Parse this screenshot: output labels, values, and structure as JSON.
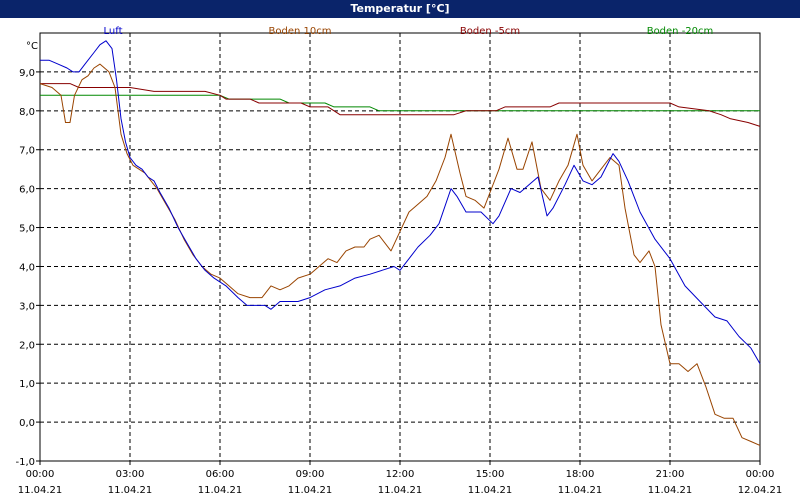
{
  "window": {
    "title": "Temperatur [°C]"
  },
  "chart_data": {
    "type": "line",
    "title": "Temperatur [°C]",
    "ylabel": "°C",
    "xlabel": "",
    "ylim": [
      -1.0,
      10.0
    ],
    "xlim": [
      0,
      24
    ],
    "grid": true,
    "legend_position": "top",
    "y_ticks": [
      -1.0,
      0.0,
      1.0,
      2.0,
      3.0,
      4.0,
      5.0,
      6.0,
      7.0,
      8.0,
      9.0
    ],
    "y_tick_labels": [
      "-1,0",
      "0,0",
      "1,0",
      "2,0",
      "3,0",
      "4,0",
      "5,0",
      "6,0",
      "7,0",
      "8,0",
      "9,0"
    ],
    "x_ticks": [
      {
        "hour": 0,
        "time": "00:00",
        "date": "11.04.21"
      },
      {
        "hour": 3,
        "time": "03:00",
        "date": "11.04.21"
      },
      {
        "hour": 6,
        "time": "06:00",
        "date": "11.04.21"
      },
      {
        "hour": 9,
        "time": "09:00",
        "date": "11.04.21"
      },
      {
        "hour": 12,
        "time": "12:00",
        "date": "11.04.21"
      },
      {
        "hour": 15,
        "time": "15:00",
        "date": "11.04.21"
      },
      {
        "hour": 18,
        "time": "18:00",
        "date": "11.04.21"
      },
      {
        "hour": 21,
        "time": "21:00",
        "date": "11.04.21"
      },
      {
        "hour": 24,
        "time": "00:00",
        "date": "12.04.21"
      }
    ],
    "series": [
      {
        "name": "Luft",
        "color": "#0000cc",
        "points": [
          [
            0,
            9.3
          ],
          [
            0.3,
            9.3
          ],
          [
            0.6,
            9.2
          ],
          [
            0.9,
            9.1
          ],
          [
            1.1,
            9.0
          ],
          [
            1.3,
            9.0
          ],
          [
            1.5,
            9.2
          ],
          [
            1.8,
            9.5
          ],
          [
            2.0,
            9.7
          ],
          [
            2.2,
            9.8
          ],
          [
            2.4,
            9.6
          ],
          [
            2.55,
            8.8
          ],
          [
            2.7,
            7.8
          ],
          [
            2.85,
            7.2
          ],
          [
            3.0,
            6.8
          ],
          [
            3.2,
            6.6
          ],
          [
            3.4,
            6.5
          ],
          [
            3.6,
            6.3
          ],
          [
            3.8,
            6.2
          ],
          [
            4.0,
            5.9
          ],
          [
            4.3,
            5.5
          ],
          [
            4.6,
            5.0
          ],
          [
            4.9,
            4.6
          ],
          [
            5.2,
            4.2
          ],
          [
            5.5,
            3.9
          ],
          [
            5.8,
            3.7
          ],
          [
            6.2,
            3.5
          ],
          [
            6.6,
            3.2
          ],
          [
            6.9,
            3.0
          ],
          [
            7.5,
            3.0
          ],
          [
            7.7,
            2.9
          ],
          [
            8.0,
            3.1
          ],
          [
            8.6,
            3.1
          ],
          [
            9.0,
            3.2
          ],
          [
            9.5,
            3.4
          ],
          [
            10.0,
            3.5
          ],
          [
            10.5,
            3.7
          ],
          [
            11.0,
            3.8
          ],
          [
            11.4,
            3.9
          ],
          [
            11.8,
            4.0
          ],
          [
            12.0,
            3.9
          ],
          [
            12.3,
            4.2
          ],
          [
            12.6,
            4.5
          ],
          [
            13.0,
            4.8
          ],
          [
            13.3,
            5.1
          ],
          [
            13.7,
            6.0
          ],
          [
            13.9,
            5.8
          ],
          [
            14.2,
            5.4
          ],
          [
            14.7,
            5.4
          ],
          [
            15.1,
            5.1
          ],
          [
            15.3,
            5.3
          ],
          [
            15.7,
            6.0
          ],
          [
            16.0,
            5.9
          ],
          [
            16.3,
            6.1
          ],
          [
            16.6,
            6.3
          ],
          [
            16.9,
            5.3
          ],
          [
            17.1,
            5.5
          ],
          [
            17.5,
            6.1
          ],
          [
            17.8,
            6.6
          ],
          [
            18.1,
            6.2
          ],
          [
            18.4,
            6.1
          ],
          [
            18.7,
            6.3
          ],
          [
            19.1,
            6.9
          ],
          [
            19.3,
            6.7
          ],
          [
            19.6,
            6.2
          ],
          [
            20.0,
            5.4
          ],
          [
            20.5,
            4.7
          ],
          [
            21.0,
            4.2
          ],
          [
            21.5,
            3.5
          ],
          [
            22.0,
            3.1
          ],
          [
            22.5,
            2.7
          ],
          [
            22.9,
            2.6
          ],
          [
            23.3,
            2.2
          ],
          [
            23.7,
            1.9
          ],
          [
            24.0,
            1.5
          ]
        ]
      },
      {
        "name": "Boden 10cm",
        "color": "#994400",
        "points": [
          [
            0,
            8.7
          ],
          [
            0.4,
            8.6
          ],
          [
            0.7,
            8.4
          ],
          [
            0.85,
            7.7
          ],
          [
            1.0,
            7.7
          ],
          [
            1.15,
            8.4
          ],
          [
            1.4,
            8.8
          ],
          [
            1.6,
            8.9
          ],
          [
            1.8,
            9.1
          ],
          [
            2.0,
            9.2
          ],
          [
            2.3,
            9.0
          ],
          [
            2.5,
            8.6
          ],
          [
            2.7,
            7.4
          ],
          [
            2.9,
            6.9
          ],
          [
            3.1,
            6.6
          ],
          [
            3.3,
            6.5
          ],
          [
            3.5,
            6.4
          ],
          [
            3.7,
            6.2
          ],
          [
            3.9,
            6.0
          ],
          [
            4.2,
            5.6
          ],
          [
            4.5,
            5.2
          ],
          [
            4.8,
            4.7
          ],
          [
            5.1,
            4.3
          ],
          [
            5.4,
            4.0
          ],
          [
            5.7,
            3.8
          ],
          [
            6.0,
            3.7
          ],
          [
            6.3,
            3.5
          ],
          [
            6.6,
            3.3
          ],
          [
            7.0,
            3.2
          ],
          [
            7.4,
            3.2
          ],
          [
            7.7,
            3.5
          ],
          [
            8.0,
            3.4
          ],
          [
            8.3,
            3.5
          ],
          [
            8.6,
            3.7
          ],
          [
            9.0,
            3.8
          ],
          [
            9.3,
            4.0
          ],
          [
            9.6,
            4.2
          ],
          [
            9.9,
            4.1
          ],
          [
            10.2,
            4.4
          ],
          [
            10.5,
            4.5
          ],
          [
            10.8,
            4.5
          ],
          [
            11.0,
            4.7
          ],
          [
            11.3,
            4.8
          ],
          [
            11.7,
            4.4
          ],
          [
            12.0,
            4.9
          ],
          [
            12.3,
            5.4
          ],
          [
            12.6,
            5.6
          ],
          [
            12.9,
            5.8
          ],
          [
            13.2,
            6.2
          ],
          [
            13.5,
            6.8
          ],
          [
            13.7,
            7.4
          ],
          [
            14.0,
            6.4
          ],
          [
            14.2,
            5.8
          ],
          [
            14.5,
            5.7
          ],
          [
            14.8,
            5.5
          ],
          [
            15.0,
            5.9
          ],
          [
            15.3,
            6.5
          ],
          [
            15.6,
            7.3
          ],
          [
            15.9,
            6.5
          ],
          [
            16.1,
            6.5
          ],
          [
            16.4,
            7.2
          ],
          [
            16.7,
            6.0
          ],
          [
            17.0,
            5.7
          ],
          [
            17.3,
            6.2
          ],
          [
            17.6,
            6.6
          ],
          [
            17.9,
            7.4
          ],
          [
            18.1,
            6.6
          ],
          [
            18.4,
            6.2
          ],
          [
            18.7,
            6.5
          ],
          [
            19.0,
            6.8
          ],
          [
            19.3,
            6.6
          ],
          [
            19.5,
            5.5
          ],
          [
            19.8,
            4.3
          ],
          [
            20.0,
            4.1
          ],
          [
            20.3,
            4.4
          ],
          [
            20.5,
            4.0
          ],
          [
            20.7,
            2.5
          ],
          [
            21.0,
            1.5
          ],
          [
            21.3,
            1.5
          ],
          [
            21.6,
            1.3
          ],
          [
            21.9,
            1.5
          ],
          [
            22.2,
            0.9
          ],
          [
            22.5,
            0.2
          ],
          [
            22.8,
            0.1
          ],
          [
            23.1,
            0.1
          ],
          [
            23.4,
            -0.4
          ],
          [
            23.7,
            -0.5
          ],
          [
            24.0,
            -0.6
          ]
        ]
      },
      {
        "name": "Boden -5cm",
        "color": "#880000",
        "points": [
          [
            0,
            8.7
          ],
          [
            1.0,
            8.7
          ],
          [
            1.3,
            8.6
          ],
          [
            3.0,
            8.6
          ],
          [
            3.8,
            8.5
          ],
          [
            5.5,
            8.5
          ],
          [
            6.0,
            8.4
          ],
          [
            6.2,
            8.3
          ],
          [
            7.0,
            8.3
          ],
          [
            7.3,
            8.2
          ],
          [
            8.7,
            8.2
          ],
          [
            9.0,
            8.1
          ],
          [
            9.6,
            8.1
          ],
          [
            9.8,
            8.0
          ],
          [
            10.0,
            7.9
          ],
          [
            13.8,
            7.9
          ],
          [
            14.2,
            8.0
          ],
          [
            15.2,
            8.0
          ],
          [
            15.5,
            8.1
          ],
          [
            17.0,
            8.1
          ],
          [
            17.3,
            8.2
          ],
          [
            21.0,
            8.2
          ],
          [
            21.3,
            8.1
          ],
          [
            22.3,
            8.0
          ],
          [
            22.7,
            7.9
          ],
          [
            23.0,
            7.8
          ],
          [
            23.6,
            7.7
          ],
          [
            24.0,
            7.6
          ]
        ]
      },
      {
        "name": "Boden -20cm",
        "color": "#008800",
        "points": [
          [
            0,
            8.4
          ],
          [
            6.0,
            8.4
          ],
          [
            6.3,
            8.3
          ],
          [
            8.0,
            8.3
          ],
          [
            8.3,
            8.2
          ],
          [
            9.5,
            8.2
          ],
          [
            9.8,
            8.1
          ],
          [
            11.0,
            8.1
          ],
          [
            11.3,
            8.0
          ],
          [
            24.0,
            8.0
          ]
        ]
      }
    ]
  }
}
